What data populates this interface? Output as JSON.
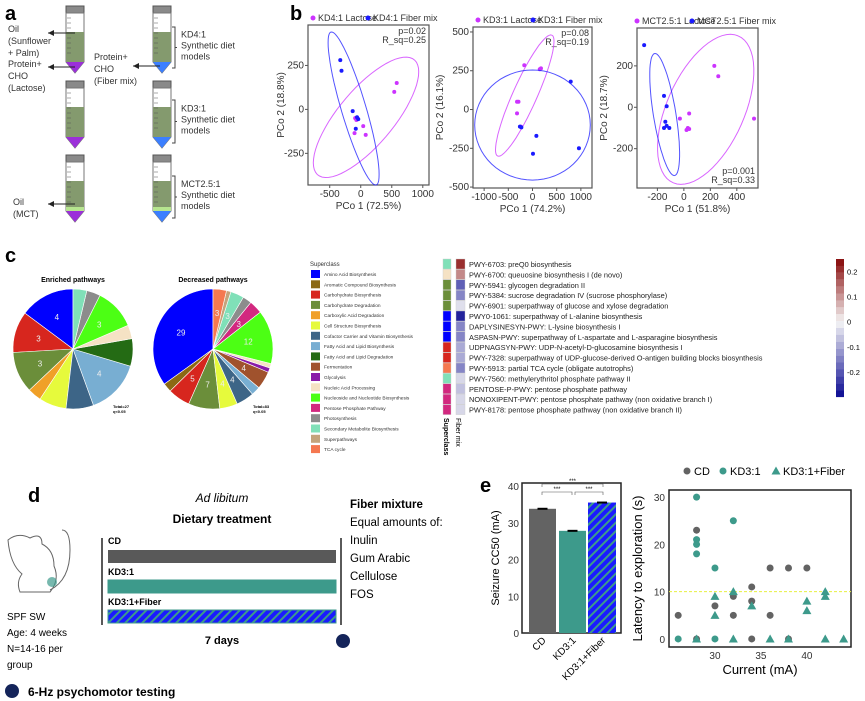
{
  "panel_labels": [
    "a",
    "b",
    "c",
    "d",
    "e"
  ],
  "panel_a": {
    "labels": {
      "oil": "Oil",
      "oil_type": "(Sunflower",
      "oil_type2": "+ Palm)",
      "prot": "Protein+",
      "cho": "CHO",
      "lactose": "(Lactose)",
      "prot2": "Protein+",
      "cho2": "CHO",
      "fiber": "(Fiber mix)",
      "mct_oil": "Oil",
      "mct": "(MCT)"
    },
    "models": [
      {
        "name": "KD4:1",
        "desc1": "Synthetic diet",
        "desc2": "models"
      },
      {
        "name": "KD3:1",
        "desc1": "Synthetic diet",
        "desc2": "models"
      },
      {
        "name": "MCT2.5:1",
        "desc1": "Synthetic diet",
        "desc2": "models"
      }
    ]
  },
  "chart_data": [
    {
      "type": "scatter",
      "id": "pcoa-kd41",
      "xlabel": "PCo 1 (72.5%)",
      "ylabel": "PCo 2 (18.8%)",
      "xlim": [
        -850,
        1100
      ],
      "ylim": [
        -430,
        480
      ],
      "xticks": [
        -500,
        0,
        500,
        1000
      ],
      "yticks": [
        -250,
        0,
        250
      ],
      "stats": [
        "p=0.02",
        "R_sq=0.25"
      ],
      "legend_position": "top",
      "series": [
        {
          "name": "KD4:1 Lactose",
          "color": "#cc33ff",
          "points": [
            [
              540,
              100
            ],
            [
              580,
              150
            ],
            [
              -90,
              -50
            ],
            [
              -70,
              -60
            ],
            [
              -100,
              -135
            ],
            [
              40,
              -95
            ],
            [
              80,
              -145
            ]
          ],
          "ellipse": {
            "center": [
              85,
              -45
            ],
            "a": [
              785,
              325
            ],
            "b": [
              325,
              -108
            ]
          }
        },
        {
          "name": "KD4:1 Fiber mix",
          "color": "#1a1aff",
          "points": [
            [
              -330,
              280
            ],
            [
              -310,
              220
            ],
            [
              -130,
              -10
            ],
            [
              -60,
              -45
            ],
            [
              -40,
              -55
            ],
            [
              -80,
              -110
            ]
          ],
          "ellipse": {
            "center": [
              -115,
              5
            ],
            "a": [
              365,
              -435
            ],
            "b": [
              190,
              20
            ]
          }
        }
      ]
    },
    {
      "type": "scatter",
      "id": "pcoa-kd31",
      "xlabel": "PCo 1 (74.2%)",
      "ylabel": "PCo 2 (16.1%)",
      "xlim": [
        -1230,
        1230
      ],
      "ylim": [
        -506,
        532
      ],
      "xticks": [
        -1000,
        -500,
        0,
        500,
        1000
      ],
      "yticks": [
        -500,
        -250,
        0,
        250,
        500
      ],
      "stats": [
        "p=0.08",
        "R_sq=0.19"
      ],
      "legend_position": "top",
      "series": [
        {
          "name": "KD3:1 Lactose",
          "color": "#cc33ff",
          "points": [
            [
              -170,
              285
            ],
            [
              150,
              260
            ],
            [
              175,
              265
            ],
            [
              -290,
              50
            ],
            [
              -320,
              50
            ],
            [
              -320,
              -25
            ],
            [
              -240,
              -110
            ]
          ],
          "ellipse": {
            "center": [
              -160,
              90
            ],
            "a": [
              560,
              390
            ],
            "b": [
              227,
              -32
            ]
          }
        },
        {
          "name": "KD3:1 Fiber mix",
          "color": "#1a1aff",
          "points": [
            [
              -260,
              -110
            ],
            [
              -230,
              -115
            ],
            [
              790,
              180
            ],
            [
              80,
              -170
            ],
            [
              10,
              -285
            ],
            [
              960,
              -250
            ]
          ],
          "ellipse": {
            "center": [
              0,
              -100
            ],
            "a": [
              1195,
              0
            ],
            "b": [
              0,
              355
            ]
          }
        }
      ]
    },
    {
      "type": "scatter",
      "id": "pcoa-mct",
      "xlabel": "PCo 1 (51.8%)",
      "ylabel": "PCo 2 (18.7%)",
      "xlim": [
        -354,
        560
      ],
      "ylim": [
        -390,
        383
      ],
      "xticks": [
        -200,
        0,
        200,
        400
      ],
      "yticks": [
        -200,
        0,
        200
      ],
      "stats": [
        "p=0.001",
        "R_sq=0.33"
      ],
      "legend_position": "top",
      "series": [
        {
          "name": "MCT2.5:1 Lactose",
          "color": "#cc33ff",
          "points": [
            [
              230,
              200
            ],
            [
              260,
              150
            ],
            [
              530,
              -55
            ],
            [
              -30,
              -55
            ],
            [
              40,
              -30
            ],
            [
              20,
              -110
            ],
            [
              40,
              -105
            ],
            [
              30,
              -100
            ]
          ],
          "ellipse": {
            "center": [
              165,
              -10
            ],
            "a": [
              245,
              355
            ],
            "b": [
              269,
              -73
            ]
          }
        },
        {
          "name": "MCT2.5:1 Fiber mix",
          "color": "#1a1aff",
          "points": [
            [
              -300,
              300
            ],
            [
              -150,
              55
            ],
            [
              -130,
              5
            ],
            [
              -140,
              -70
            ],
            [
              -150,
              -100
            ],
            [
              -110,
              -100
            ],
            [
              -130,
              -90
            ]
          ],
          "ellipse": {
            "center": [
              -145,
              -35
            ],
            "a": [
              75,
              -295
            ],
            "b": [
              84,
              8
            ]
          }
        }
      ]
    },
    {
      "type": "pie",
      "id": "enriched",
      "title": "Enriched pathways",
      "note": [
        "Total=27",
        "q<0.05"
      ],
      "slices": [
        {
          "c": "Amino Acid Biosynthesis",
          "v": 4
        },
        {
          "c": "Carbohydrate Biosynthesis",
          "v": 3
        },
        {
          "c": "Carbohydrate Degradation",
          "v": 3
        },
        {
          "c": "Carboxylic Acid Degradation",
          "v": 1
        },
        {
          "c": "Cell Structure Biosynthesis",
          "v": 2
        },
        {
          "c": "Cofactor Carrier and Vitamin Biosynthesis",
          "v": 2
        },
        {
          "c": "Fatty Acid and Lipid Biosynthesis",
          "v": 4
        },
        {
          "c": "Fatty Acid and Lipid Degradation",
          "v": 2
        },
        {
          "c": "Nucleic Acid Processing",
          "v": 1
        },
        {
          "c": "Nucleoside and Nucleotide Biosynthesis",
          "v": 3
        },
        {
          "c": "Photosynthesis",
          "v": 1
        },
        {
          "c": "Secondary Metabolite Biosynthesis",
          "v": 1
        }
      ]
    },
    {
      "type": "pie",
      "id": "decreased",
      "title": "Decreased pathways",
      "note": [
        "Total=83",
        "q<0.05"
      ],
      "slices": [
        {
          "c": "Amino Acid Biosynthesis",
          "v": 29
        },
        {
          "c": "Aromatic Compound Biosynthesis",
          "v": 2
        },
        {
          "c": "Carbohydrate Biosynthesis",
          "v": 5
        },
        {
          "c": "Carbohydrate Degradation",
          "v": 7
        },
        {
          "c": "Cell Structure Biosynthesis",
          "v": 4
        },
        {
          "c": "Cofactor Carrier and Vitamin Biosynthesis",
          "v": 4
        },
        {
          "c": "Fatty Acid and Lipid Biosynthesis",
          "v": 2
        },
        {
          "c": "Fermentation",
          "v": 4
        },
        {
          "c": "Glycolysis",
          "v": 1
        },
        {
          "c": "Nucleic Acid Processing",
          "v": 1
        },
        {
          "c": "Nucleoside and Nucleotide Biosynthesis",
          "v": 12
        },
        {
          "c": "Pentose Phosphate Pathway",
          "v": 3
        },
        {
          "c": "Photosynthesis",
          "v": 2
        },
        {
          "c": "Secondary Metabolite Biosynthesis",
          "v": 3
        },
        {
          "c": "Superpathways",
          "v": 1
        },
        {
          "c": "TCA cycle",
          "v": 3
        }
      ]
    },
    {
      "type": "heatmap",
      "id": "pathway-heatmap",
      "column_labels": [
        "Superclass",
        "Fiber mix"
      ],
      "color_scale": {
        "min": -0.3,
        "max": 0.25,
        "ticks": [
          0.2,
          0.1,
          0,
          -0.1,
          -0.2
        ]
      },
      "rows": [
        {
          "label": "PWY-6703: preQ0 biosynthesis",
          "superclass": "Secondary Metabolite Biosynthesis",
          "value": 0.22
        },
        {
          "label": "PWY-6700: queuosine biosynthesis I (de novo)",
          "superclass": "Nucleic Acid Processing",
          "value": 0.12
        },
        {
          "label": "PWY-5941: glycogen degradation II",
          "superclass": "Carbohydrate Degradation",
          "value": -0.2
        },
        {
          "label": "PWY-5384: sucrose degradation IV (sucrose phosphorylase)",
          "superclass": "Carbohydrate Degradation",
          "value": -0.15
        },
        {
          "label": "PWY-6901: superpathway of glucose and xylose degradation",
          "superclass": "Carbohydrate Degradation",
          "value": -0.03
        },
        {
          "label": "PWY0-1061: superpathway of L-alanine biosynthesis",
          "superclass": "Amino Acid Biosynthesis",
          "value": -0.28
        },
        {
          "label": "DAPLYSINESYN-PWY: L-lysine biosynthesis I",
          "superclass": "Amino Acid Biosynthesis",
          "value": -0.15
        },
        {
          "label": "ASPASN-PWY: superpathway of L-aspartate and L-asparagine biosynthesis",
          "superclass": "Amino Acid Biosynthesis",
          "value": -0.15
        },
        {
          "label": "UDPNAGSYN-PWY: UDP-N-acetyl-D-glucosamine biosynthesis I",
          "superclass": "Carbohydrate Biosynthesis",
          "value": -0.1
        },
        {
          "label": "PWY-7328: superpathway of UDP-glucose-derived O-antigen building blocks biosynthesis",
          "superclass": "Carbohydrate Biosynthesis",
          "value": -0.1
        },
        {
          "label": "PWY-5913: partial TCA cycle (obligate autotrophs)",
          "superclass": "TCA cycle",
          "value": -0.15
        },
        {
          "label": "PWY-7560: methylerythritol phosphate pathway II",
          "superclass": "Secondary Metabolite Biosynthesis",
          "value": -0.04
        },
        {
          "label": "PENTOSE-P-PWY: pentose phosphate pathway",
          "superclass": "Pentose Phosphate Pathway",
          "value": -0.07
        },
        {
          "label": "NONOXIPENT-PWY: pentose phosphate pathway (non oxidative branch I)",
          "superclass": "Pentose Phosphate Pathway",
          "value": -0.04
        },
        {
          "label": "PWY-8178: pentose phosphate pathway (non oxidative branch  II)",
          "superclass": "Pentose Phosphate Pathway",
          "value": -0.04
        }
      ]
    },
    {
      "type": "bar",
      "id": "seizure-cc50",
      "categories": [
        "CD",
        "KD3:1",
        "KD3:1+Fiber"
      ],
      "values": [
        33.8,
        27.8,
        35.5
      ],
      "errors": [
        0.3,
        0.2,
        0.4
      ],
      "ylabel": "Seizure CC50 (mA)",
      "ylim": [
        0,
        40
      ],
      "yticks": [
        0,
        10,
        20,
        30,
        40
      ],
      "colors": [
        "#636363",
        "#3d9a8b",
        "#1a1aff"
      ],
      "significance": [
        {
          "pair": [
            "CD",
            "KD3:1"
          ],
          "label": "***"
        },
        {
          "pair": [
            "KD3:1",
            "KD3:1+Fiber"
          ],
          "label": "***"
        },
        {
          "pair": [
            "CD",
            "KD3:1+Fiber"
          ],
          "label": "***"
        }
      ]
    },
    {
      "type": "scatter",
      "id": "latency",
      "xlabel": "Current (mA)",
      "ylabel": "Latency to exploration (s)",
      "xlim": [
        25,
        44.8
      ],
      "ylim": [
        -1.7,
        31.5
      ],
      "xticks": [
        30,
        35,
        40
      ],
      "yticks": [
        0,
        10,
        20,
        30
      ],
      "threshold": 10,
      "legend_position": "top",
      "series": [
        {
          "name": "CD",
          "color": "#636363",
          "marker": "circle",
          "points": [
            [
              26,
              5
            ],
            [
              28,
              23
            ],
            [
              28,
              0
            ],
            [
              30,
              7
            ],
            [
              32,
              9
            ],
            [
              32,
              5
            ],
            [
              34,
              11
            ],
            [
              34,
              8
            ],
            [
              34,
              0
            ],
            [
              36,
              15
            ],
            [
              36,
              5
            ],
            [
              38,
              15
            ],
            [
              38,
              0
            ],
            [
              40,
              15
            ]
          ]
        },
        {
          "name": "KD3:1",
          "color": "#3d9a8b",
          "marker": "circle",
          "points": [
            [
              26,
              0
            ],
            [
              28,
              30
            ],
            [
              28,
              21
            ],
            [
              28,
              20
            ],
            [
              28,
              18
            ],
            [
              30,
              15
            ],
            [
              30,
              0
            ],
            [
              32,
              25
            ]
          ]
        },
        {
          "name": "KD3:1+Fiber",
          "color": "#3d9a8b",
          "marker": "triangle",
          "points": [
            [
              28,
              0
            ],
            [
              30,
              9
            ],
            [
              30,
              5
            ],
            [
              32,
              10
            ],
            [
              32,
              0
            ],
            [
              34,
              7
            ],
            [
              36,
              0
            ],
            [
              38,
              0
            ],
            [
              40,
              8
            ],
            [
              40,
              6
            ],
            [
              42,
              10
            ],
            [
              42,
              9
            ],
            [
              42,
              0
            ],
            [
              44,
              0
            ]
          ]
        }
      ]
    }
  ],
  "superclass_legend": {
    "title": "Superclass",
    "items": [
      {
        "name": "Amino Acid Biosynthesis",
        "color": "#0000ff"
      },
      {
        "name": "Aromatic Compound Biosynthesis",
        "color": "#8b6914"
      },
      {
        "name": "Carbohydrate Biosynthesis",
        "color": "#d7261e"
      },
      {
        "name": "Carbohydrate Degradation",
        "color": "#6b8e3a"
      },
      {
        "name": "Carboxylic Acid Degradation",
        "color": "#f0a028"
      },
      {
        "name": "Cell Structure Biosynthesis",
        "color": "#e6fa3c"
      },
      {
        "name": "Cofactor Carrier and Vitamin Biosynthesis",
        "color": "#3d6587"
      },
      {
        "name": "Fatty Acid and Lipid Biosynthesis",
        "color": "#78aed2"
      },
      {
        "name": "Fatty Acid and Lipid Degradation",
        "color": "#246b14"
      },
      {
        "name": "Fermentation",
        "color": "#a0522d"
      },
      {
        "name": "Glycolysis",
        "color": "#8a1aa8"
      },
      {
        "name": "Nucleic Acid Processing",
        "color": "#f5e2c4"
      },
      {
        "name": "Nucleoside and Nucleotide Biosynthesis",
        "color": "#4cff14"
      },
      {
        "name": "Pentose Phosphate Pathway",
        "color": "#d2287f"
      },
      {
        "name": "Photosynthesis",
        "color": "#8c8c8c"
      },
      {
        "name": "Secondary Metabolite Biosynthesis",
        "color": "#80e0b8"
      },
      {
        "name": "Superpathways",
        "color": "#c4a47c"
      },
      {
        "name": "TCA cycle",
        "color": "#f57850"
      }
    ]
  },
  "panel_d": {
    "title_italic": "Ad libitum",
    "title": "Dietary treatment",
    "bars": [
      {
        "label": "CD",
        "color": "#595959"
      },
      {
        "label": "KD3:1",
        "color": "#3d9a8b"
      },
      {
        "label": "KD3:1+Fiber",
        "color": "#1a1aff"
      }
    ],
    "duration": "7 days",
    "mouse": [
      "SPF SW",
      "Age: 4 weeks",
      "N=14-16 per",
      "group"
    ],
    "fiber": {
      "title": "Fiber mixture",
      "subtitle": "Equal amounts of:",
      "items": [
        "Inulin",
        "Gum Arabic",
        "Cellulose",
        "FOS"
      ]
    },
    "test_legend": "6-Hz psychomotor testing",
    "test_color": "#14245a"
  }
}
